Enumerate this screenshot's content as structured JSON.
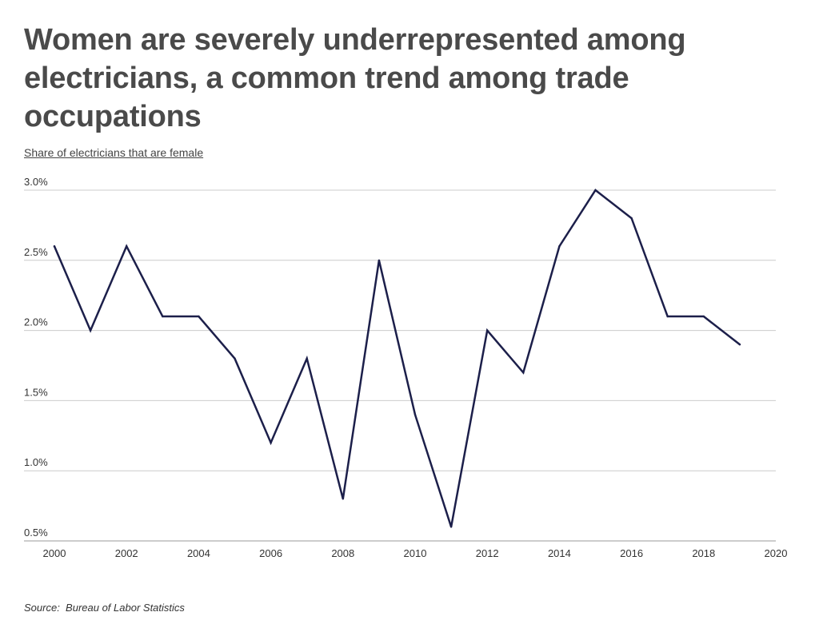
{
  "chart_data": {
    "type": "line",
    "title": "Women are severely underrepresented among electricians, a common trend among trade occupations",
    "subtitle": "Share of electricians that are female",
    "source_label": "Source:",
    "source_text": "Bureau of Labor Statistics",
    "x": [
      2000,
      2001,
      2002,
      2003,
      2004,
      2005,
      2006,
      2007,
      2008,
      2009,
      2010,
      2011,
      2012,
      2013,
      2014,
      2015,
      2016,
      2017,
      2018,
      2019
    ],
    "series": [
      {
        "values": [
          2.6,
          2.0,
          2.6,
          2.1,
          2.1,
          1.8,
          1.2,
          1.8,
          0.8,
          2.5,
          1.4,
          0.6,
          2.0,
          1.7,
          2.6,
          3.0,
          2.8,
          2.1,
          2.1,
          1.9
        ],
        "color": "#1c1f4a"
      }
    ],
    "xlim": [
      2000,
      2020
    ],
    "ylim": [
      0.5,
      3.0
    ],
    "x_ticks": [
      2000,
      2002,
      2004,
      2006,
      2008,
      2010,
      2012,
      2014,
      2016,
      2018,
      2020
    ],
    "y_ticks": [
      0.5,
      1.0,
      1.5,
      2.0,
      2.5,
      3.0
    ],
    "y_tick_labels": [
      "0.5%",
      "1.0%",
      "1.5%",
      "2.0%",
      "2.5%",
      "3.0%"
    ],
    "grid": "horizontal",
    "gridline_color": "#cccccc",
    "baseline_color": "#999999"
  }
}
